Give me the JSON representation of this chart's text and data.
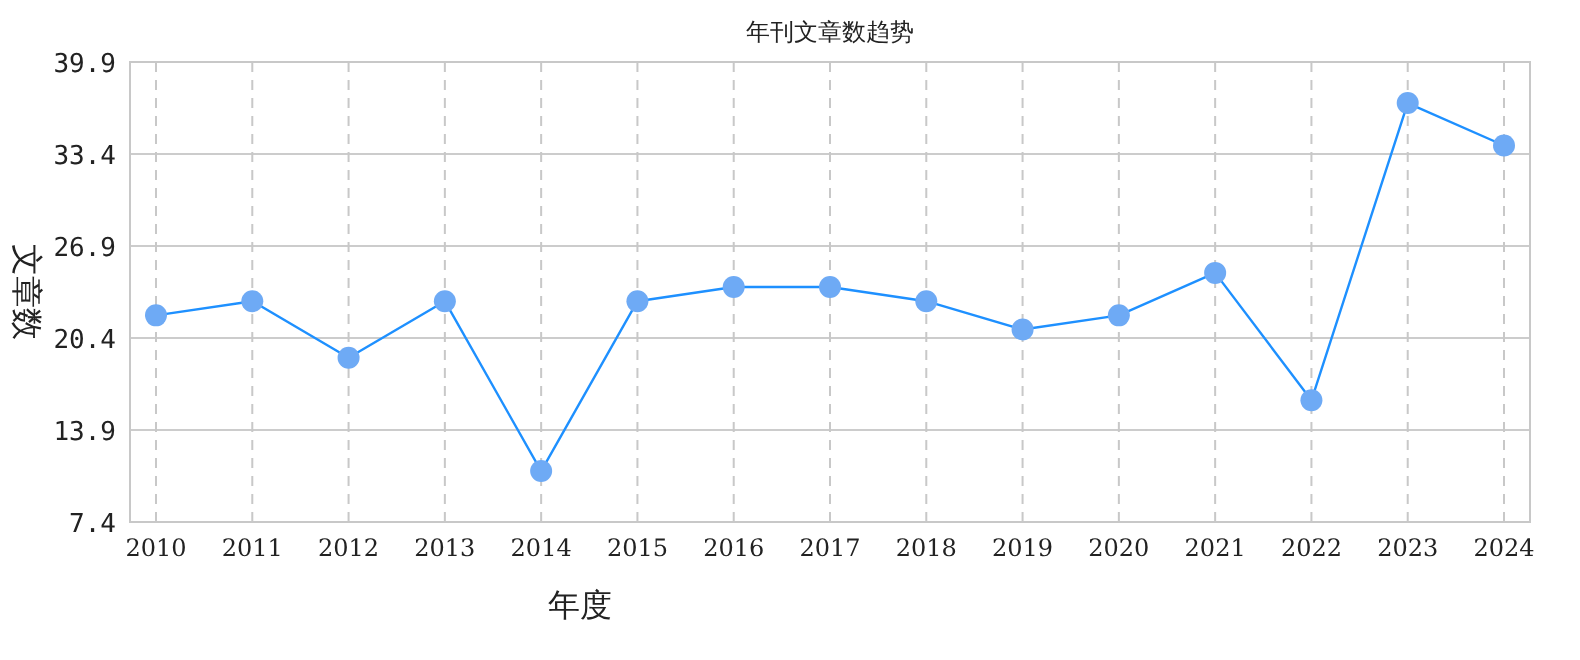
{
  "chart_data": {
    "type": "line",
    "title": "年刊文章数趋势",
    "xlabel": "年度",
    "ylabel": "文章数",
    "categories": [
      "2010",
      "2011",
      "2012",
      "2013",
      "2014",
      "2015",
      "2016",
      "2017",
      "2018",
      "2019",
      "2020",
      "2021",
      "2022",
      "2023",
      "2024"
    ],
    "series": [
      {
        "color": "#1e90ff",
        "values": [
          22,
          23,
          19,
          23,
          11,
          23,
          24,
          24,
          23,
          21,
          22,
          25,
          16,
          37,
          34
        ]
      }
    ],
    "ylim": [
      7.4,
      39.9
    ],
    "yticks": [
      7.4,
      13.9,
      20.4,
      26.9,
      33.4,
      39.9
    ],
    "grid": true,
    "marker": "circle",
    "line_style": "solid"
  }
}
